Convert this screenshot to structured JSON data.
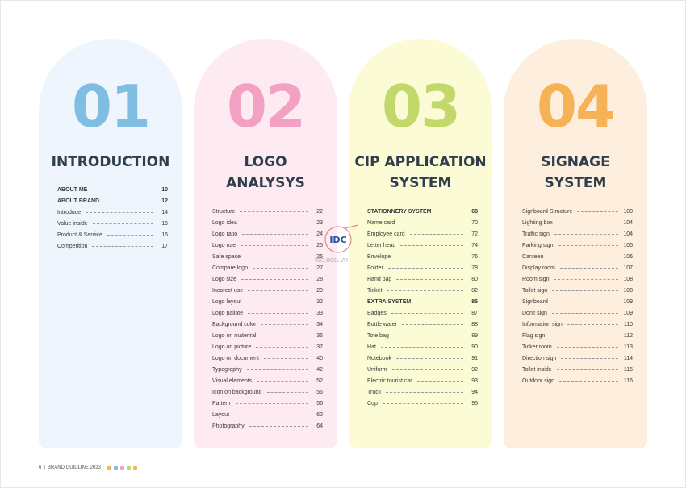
{
  "colors": {
    "num1": "#7fbde3",
    "num2": "#f2a1c2",
    "num3": "#c3d86a",
    "num4": "#f6b257"
  },
  "sections": [
    {
      "number": "01",
      "title": [
        "INTRODUCTION"
      ],
      "items": [
        {
          "label": "ABOUT ME",
          "page": "10",
          "bold": true
        },
        {
          "label": "ABOUT BRAND",
          "page": "12",
          "bold": true
        },
        {
          "label": "Introduce",
          "page": "14"
        },
        {
          "label": "Value inside",
          "page": "15"
        },
        {
          "label": "Product & Service",
          "page": "16"
        },
        {
          "label": "Competition",
          "page": "17"
        }
      ]
    },
    {
      "number": "02",
      "title": [
        "LOGO",
        "ANALYSYS"
      ],
      "items": [
        {
          "label": "Structure",
          "page": "22"
        },
        {
          "label": "Logo idea",
          "page": "23"
        },
        {
          "label": "Logo ratio",
          "page": "24"
        },
        {
          "label": "Logo rule",
          "page": "25"
        },
        {
          "label": "Safe space",
          "page": "26"
        },
        {
          "label": "Compare logo",
          "page": "27"
        },
        {
          "label": "Logo size",
          "page": "28"
        },
        {
          "label": "Incorect use",
          "page": "29"
        },
        {
          "label": "Logo layout",
          "page": "32"
        },
        {
          "label": "Logo pallate",
          "page": "33"
        },
        {
          "label": "Background color",
          "page": "34"
        },
        {
          "label": "Logo on materiral",
          "page": "36"
        },
        {
          "label": "Logo on picture",
          "page": "37"
        },
        {
          "label": "Logo on document",
          "page": "40"
        },
        {
          "label": "Typography",
          "page": "42"
        },
        {
          "label": "Visual elements",
          "page": "52"
        },
        {
          "label": "Icon on background",
          "page": "56"
        },
        {
          "label": "Pattern",
          "page": "56"
        },
        {
          "label": "Layout",
          "page": "62"
        },
        {
          "label": "Photography",
          "page": "64"
        }
      ]
    },
    {
      "number": "03",
      "title": [
        "CIP APPLICATION",
        "SYSTEM"
      ],
      "items": [
        {
          "label": "STATIONNERY SYSTEM",
          "page": "68",
          "bold": true
        },
        {
          "label": "Name card",
          "page": "70"
        },
        {
          "label": "Employee card",
          "page": "72"
        },
        {
          "label": "Letter head",
          "page": "74"
        },
        {
          "label": "Envelope",
          "page": "76"
        },
        {
          "label": "Folder",
          "page": "78"
        },
        {
          "label": "Hand bag",
          "page": "80"
        },
        {
          "label": "Ticket",
          "page": "82"
        },
        {
          "label": "EXTRA SYSTEM",
          "page": "86",
          "bold": true
        },
        {
          "label": "Badges",
          "page": "87"
        },
        {
          "label": "Bottle water",
          "page": "88"
        },
        {
          "label": "Tote bag",
          "page": "89"
        },
        {
          "label": "Hat",
          "page": "90"
        },
        {
          "label": "Notebook",
          "page": "91"
        },
        {
          "label": "Uniform",
          "page": "92"
        },
        {
          "label": "Electric tourist car",
          "page": "93"
        },
        {
          "label": "Truck",
          "page": "94"
        },
        {
          "label": "Cup",
          "page": "95"
        }
      ]
    },
    {
      "number": "04",
      "title": [
        "SIGNAGE",
        "SYSTEM"
      ],
      "items": [
        {
          "label": "Signboard Structure",
          "page": "100"
        },
        {
          "label": "Lighting box",
          "page": "104"
        },
        {
          "label": "Traffic sign",
          "page": "104"
        },
        {
          "label": "Parking sign",
          "page": "105"
        },
        {
          "label": "Canteen",
          "page": "106"
        },
        {
          "label": "Display room",
          "page": "107"
        },
        {
          "label": "Room sign",
          "page": "108"
        },
        {
          "label": "Toilet sign",
          "page": "108"
        },
        {
          "label": "Signboard",
          "page": "109"
        },
        {
          "label": "Don't sign",
          "page": "109"
        },
        {
          "label": "Information sign",
          "page": "110"
        },
        {
          "label": "Flag sign",
          "page": "112"
        },
        {
          "label": "Ticker room",
          "page": "113"
        },
        {
          "label": "Direction sign",
          "page": "114"
        },
        {
          "label": "Toilet inside",
          "page": "115"
        },
        {
          "label": "Outdoor sign",
          "page": "116"
        }
      ]
    }
  ],
  "watermark": {
    "logo_text": "IDC",
    "url_text": "idc.edu.vn"
  },
  "footer": {
    "page_number": "6",
    "separator": "|",
    "label": "BRAND GUIDLINE 2023"
  }
}
